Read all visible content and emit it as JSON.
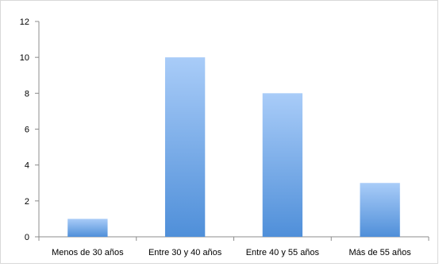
{
  "chart_data": {
    "type": "bar",
    "title": "",
    "xlabel": "",
    "ylabel": "",
    "categories": [
      "Menos de 30 años",
      "Entre 30 y 40 años",
      "Entre 40 y 55 años",
      "Más de 55 años"
    ],
    "values": [
      1,
      10,
      8,
      3
    ],
    "ylim": [
      0,
      12
    ],
    "yticks": [
      "0",
      "2",
      "4",
      "6",
      "8",
      "10",
      "12"
    ],
    "grid": false,
    "legend": "none",
    "colors": {
      "bar_top": "#a9ccf8",
      "bar_bottom": "#4f8fd9",
      "axis": "#8c8c8c"
    }
  }
}
